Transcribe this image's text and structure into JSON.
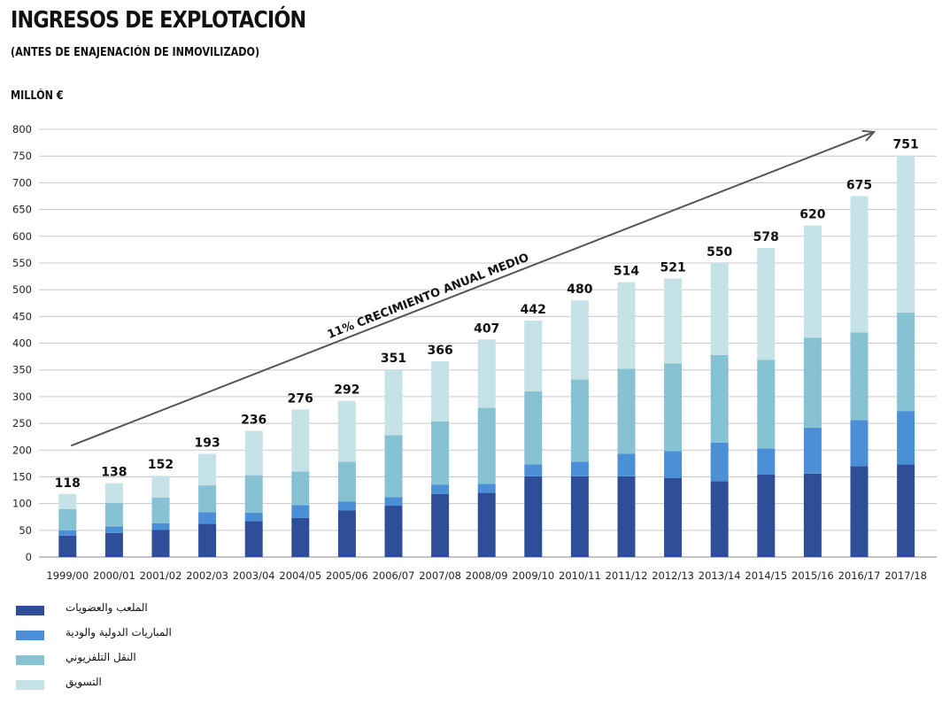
{
  "title": "INGRESOS DE EXPLOTACIÓN",
  "subtitle": "(ANTES DE ENAJENACIÓN DE INMOVILIZADO)",
  "unit": "MILLÓN €",
  "colors": {
    "stadium": "#2e4e97",
    "matches": "#4b8fd6",
    "tv": "#87c2d2",
    "marketing": "#c5e2e7",
    "grid": "#c8c8c8",
    "arrow": "#555555"
  },
  "chart_data": {
    "type": "bar",
    "stacked": true,
    "categories": [
      "1999/00",
      "2000/01",
      "2001/02",
      "2002/03",
      "2003/04",
      "2004/05",
      "2005/06",
      "2006/07",
      "2007/08",
      "2008/09",
      "2009/10",
      "2010/11",
      "2011/12",
      "2012/13",
      "2013/14",
      "2014/15",
      "2015/16",
      "2016/17",
      "2017/18"
    ],
    "series": [
      {
        "name": "الملعب والعضويات",
        "color_key": "stadium",
        "values": [
          40,
          45,
          51,
          62,
          67,
          73,
          87,
          96,
          118,
          120,
          151,
          151,
          151,
          148,
          142,
          154,
          156,
          170,
          173
        ]
      },
      {
        "name": "المباريات الدولية والودية",
        "color_key": "matches",
        "values": [
          10,
          12,
          12,
          22,
          16,
          24,
          17,
          16,
          17,
          17,
          22,
          27,
          42,
          50,
          72,
          49,
          86,
          86,
          100
        ]
      },
      {
        "name": "النقل التلفزيوني",
        "color_key": "tv",
        "values": [
          40,
          44,
          48,
          50,
          70,
          63,
          74,
          116,
          119,
          142,
          137,
          154,
          159,
          164,
          164,
          166,
          168,
          164,
          184
        ]
      },
      {
        "name": "التسويق",
        "color_key": "marketing",
        "values": [
          28,
          37,
          41,
          59,
          83,
          116,
          114,
          123,
          112,
          128,
          132,
          148,
          162,
          159,
          172,
          209,
          210,
          255,
          294
        ]
      }
    ],
    "totals": [
      118,
      138,
      152,
      193,
      236,
      276,
      292,
      351,
      366,
      407,
      442,
      480,
      514,
      521,
      550,
      578,
      620,
      675,
      751
    ],
    "ylim": [
      0,
      800
    ],
    "yticks": [
      0,
      50,
      100,
      150,
      200,
      250,
      300,
      350,
      400,
      450,
      500,
      550,
      600,
      650,
      700,
      750,
      800
    ],
    "ylabel": "MILLÓN €",
    "grid": true,
    "legend_position": "bottom-left",
    "annotation": {
      "text": "11% CRECIMIENTO ANUAL MEDIO",
      "arrow_from": {
        "x": "1999/00",
        "y": 195
      },
      "arrow_to": {
        "x": "2017/18",
        "y": 790
      }
    }
  }
}
